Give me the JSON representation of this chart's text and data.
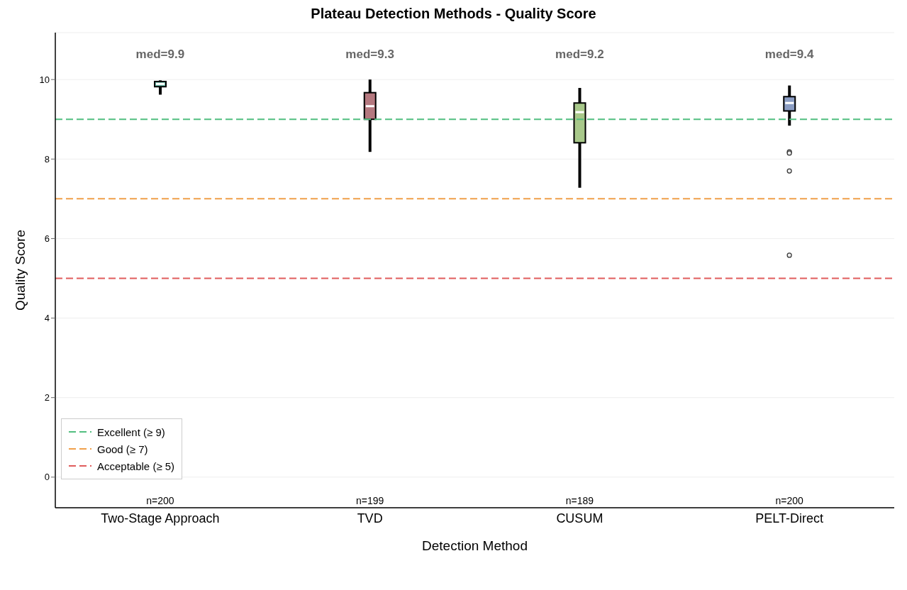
{
  "chart_data": {
    "type": "box",
    "title": "Plateau Detection Methods - Quality Score",
    "xlabel": "Detection Method",
    "ylabel": "Quality Score",
    "categories": [
      "Two-Stage Approach",
      "TVD",
      "CUSUM",
      "PELT-Direct"
    ],
    "colors": [
      "#6dbaa8",
      "#b5787f",
      "#a8c88a",
      "#8b9dc3"
    ],
    "boxes": [
      {
        "low": 9.62,
        "q1": 9.82,
        "median": 9.89,
        "q3": 9.95,
        "high": 9.98
      },
      {
        "low": 8.18,
        "q1": 9.0,
        "median": 9.33,
        "q3": 9.67,
        "high": 10.0
      },
      {
        "low": 7.28,
        "q1": 8.41,
        "median": 9.18,
        "q3": 9.41,
        "high": 9.79
      },
      {
        "low": 8.84,
        "q1": 9.21,
        "median": 9.41,
        "q3": 9.57,
        "high": 9.85,
        "outliers": [
          8.18,
          8.15,
          7.7,
          5.58
        ]
      }
    ],
    "ylim": [
      -0.77,
      11.18
    ],
    "yticks": [
      0,
      2,
      4,
      6,
      8,
      10
    ],
    "grid": "y",
    "ref_lines": [
      {
        "axis": "y",
        "value": 9,
        "label": "Excellent (≥ 9)",
        "color": "#52be80",
        "line_style": "dashed"
      },
      {
        "axis": "y",
        "value": 7,
        "label": "Good (≥ 7)",
        "color": "#f0a04b",
        "line_style": "dashed"
      },
      {
        "axis": "y",
        "value": 5,
        "label": "Acceptable (≥ 5)",
        "color": "#e05c5c",
        "line_style": "dashed"
      }
    ],
    "legend": "bottom left",
    "annotations": [
      "med=9.9",
      "med=9.3",
      "med=9.2",
      "med=9.4",
      "n=200",
      "n=199",
      "n=189",
      "n=200"
    ]
  }
}
